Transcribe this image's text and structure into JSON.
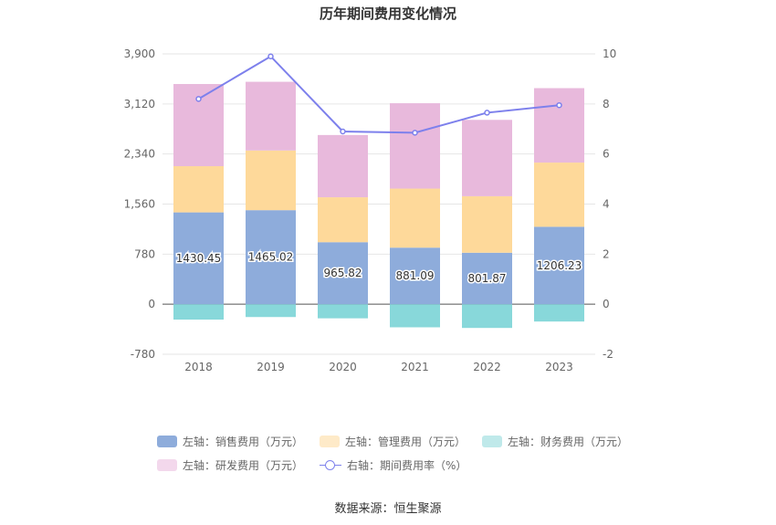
{
  "chart_data": {
    "type": "bar",
    "title": "历年期间费用变化情况",
    "categories": [
      "2018",
      "2019",
      "2020",
      "2021",
      "2022",
      "2023"
    ],
    "left_axis": {
      "ticks": [
        "3,900",
        "3,120",
        "2,340",
        "1,560",
        "780",
        "0",
        "-780"
      ],
      "min": -780,
      "max": 3900
    },
    "right_axis": {
      "ticks": [
        "10",
        "8",
        "6",
        "4",
        "2",
        "0",
        "-2"
      ],
      "min": -2,
      "max": 10
    },
    "series": [
      {
        "name": "左轴：销售费用（万元）",
        "color": "#8eacdb",
        "values": [
          1430.45,
          1465.02,
          965.82,
          881.09,
          801.87,
          1206.23
        ],
        "labels": [
          "1430.45",
          "1465.02",
          "965.82",
          "881.09",
          "801.87",
          "1206.23"
        ]
      },
      {
        "name": "左轴：管理费用（万元）",
        "color": "#fed99a",
        "values": [
          720,
          930,
          700,
          920,
          880,
          1000
        ]
      },
      {
        "name": "左轴：财务费用（万元）",
        "color": "#88d8da",
        "values": [
          -240,
          -200,
          -220,
          -360,
          -370,
          -270
        ]
      },
      {
        "name": "左轴：研发费用（万元）",
        "color": "#e8b9dc",
        "values": [
          1280,
          1070,
          970,
          1330,
          1190,
          1160
        ]
      },
      {
        "name": "右轴：期间费用率（%）",
        "color": "#7d80ec",
        "axis": "right",
        "values": [
          8.2,
          9.9,
          6.9,
          6.85,
          7.65,
          7.95
        ]
      }
    ],
    "grid": true,
    "legend_position": "bottom"
  },
  "legend": {
    "row1": [
      "左轴：销售费用（万元）",
      "左轴：管理费用（万元）",
      "左轴：财务费用（万元）"
    ],
    "row2": [
      "左轴：研发费用（万元）",
      "右轴：期间费用率（%）"
    ],
    "row1_colors": [
      "#8eacdb",
      "#feeac8",
      "#bfe9ea"
    ],
    "row2_colors": [
      "#f3d8ec"
    ]
  },
  "source": "数据来源：恒生聚源"
}
